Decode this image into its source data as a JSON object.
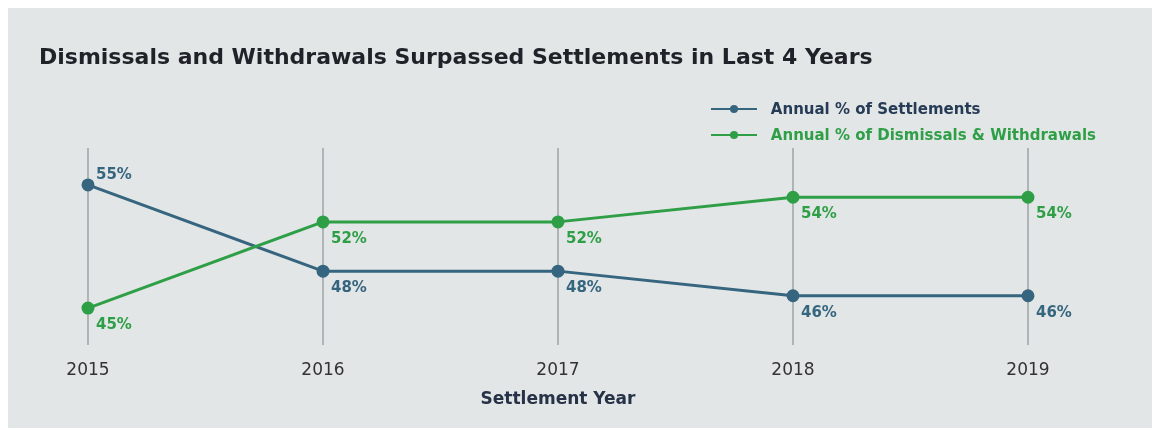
{
  "chart_data": {
    "type": "line",
    "title": "Dismissals and Withdrawals Surpassed Settlements in Last 4 Years",
    "xlabel": "Settlement Year",
    "categories": [
      "2015",
      "2016",
      "2017",
      "2018",
      "2019"
    ],
    "series": [
      {
        "name": "Annual % of Settlements",
        "color": "#36657f",
        "values": [
          55,
          48,
          48,
          46,
          46
        ],
        "value_labels": [
          "55%",
          "48%",
          "48%",
          "46%",
          "46%"
        ]
      },
      {
        "name": "Annual % of Dismissals & Withdrawals",
        "color": "#2e9f46",
        "values": [
          45,
          52,
          52,
          54,
          54
        ],
        "value_labels": [
          "45%",
          "52%",
          "52%",
          "54%",
          "54%"
        ]
      }
    ],
    "grid": "x",
    "legend": "top right",
    "marker": "circle",
    "line_style": "solid",
    "tick_labels": "x"
  }
}
